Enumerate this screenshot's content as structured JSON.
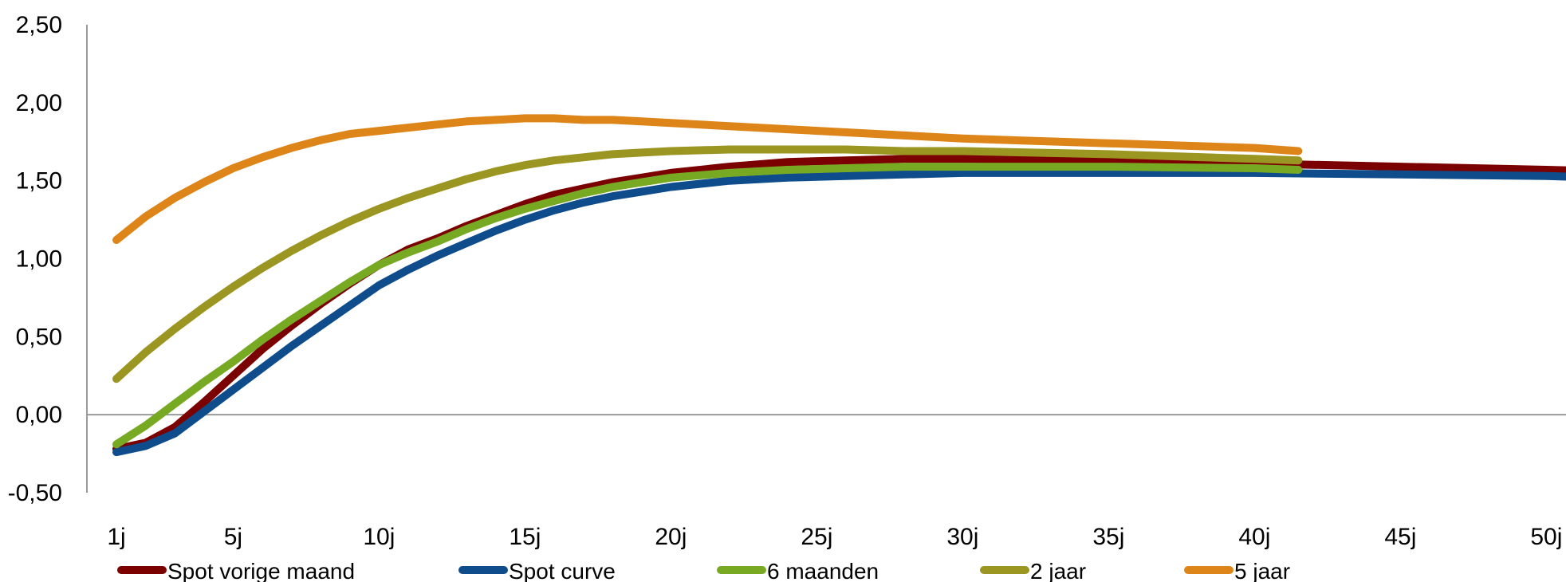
{
  "chart_data": {
    "type": "line",
    "title": "",
    "xlabel": "",
    "ylabel": "",
    "ylim": [
      -0.5,
      2.5
    ],
    "yticks": [
      "2,50",
      "2,00",
      "1,50",
      "1,00",
      "0,50",
      "0,00",
      "-0,50"
    ],
    "ytick_values": [
      2.5,
      2.0,
      1.5,
      1.0,
      0.5,
      0.0,
      -0.5
    ],
    "xlim": [
      1,
      54
    ],
    "xticks": [
      "1j",
      "5j",
      "10j",
      "15j",
      "20j",
      "25j",
      "30j",
      "35j",
      "40j",
      "45j",
      "50j"
    ],
    "xtick_values": [
      1,
      5,
      10,
      15,
      20,
      25,
      30,
      35,
      40,
      45,
      50
    ],
    "grid": false,
    "legend_position": "bottom",
    "series": [
      {
        "name": "Spot vorige maand",
        "color": "#7B0000",
        "x": [
          1,
          2,
          3,
          4,
          5,
          6,
          7,
          8,
          9,
          10,
          11,
          12,
          13,
          14,
          15,
          16,
          17,
          18,
          19,
          20,
          22,
          24,
          26,
          28,
          30,
          35,
          40,
          45,
          50,
          54
        ],
        "y": [
          -0.22,
          -0.18,
          -0.08,
          0.08,
          0.25,
          0.42,
          0.57,
          0.71,
          0.84,
          0.96,
          1.06,
          1.13,
          1.21,
          1.28,
          1.35,
          1.41,
          1.45,
          1.49,
          1.52,
          1.55,
          1.59,
          1.62,
          1.63,
          1.64,
          1.64,
          1.63,
          1.61,
          1.59,
          1.57,
          1.55
        ]
      },
      {
        "name": "Spot curve",
        "color": "#0E4C8C",
        "x": [
          1,
          2,
          3,
          4,
          5,
          6,
          7,
          8,
          9,
          10,
          11,
          12,
          13,
          14,
          15,
          16,
          17,
          18,
          19,
          20,
          22,
          24,
          26,
          28,
          30,
          35,
          40,
          45,
          50,
          54
        ],
        "y": [
          -0.24,
          -0.2,
          -0.12,
          0.02,
          0.16,
          0.3,
          0.44,
          0.57,
          0.7,
          0.83,
          0.93,
          1.02,
          1.1,
          1.18,
          1.25,
          1.31,
          1.36,
          1.4,
          1.43,
          1.46,
          1.5,
          1.52,
          1.53,
          1.54,
          1.55,
          1.55,
          1.55,
          1.54,
          1.53,
          1.51
        ]
      },
      {
        "name": "6 maanden",
        "color": "#77A923",
        "x": [
          1,
          2,
          3,
          4,
          5,
          6,
          7,
          8,
          9,
          10,
          11,
          12,
          13,
          14,
          15,
          16,
          17,
          18,
          19,
          20,
          22,
          24,
          26,
          28,
          30,
          35,
          40,
          41.5
        ],
        "y": [
          -0.19,
          -0.07,
          0.07,
          0.21,
          0.34,
          0.48,
          0.61,
          0.73,
          0.85,
          0.96,
          1.04,
          1.11,
          1.19,
          1.26,
          1.32,
          1.37,
          1.42,
          1.46,
          1.49,
          1.52,
          1.55,
          1.57,
          1.58,
          1.59,
          1.59,
          1.59,
          1.58,
          1.57
        ]
      },
      {
        "name": "2 jaar",
        "color": "#9B9521",
        "x": [
          1,
          2,
          3,
          4,
          5,
          6,
          7,
          8,
          9,
          10,
          11,
          12,
          13,
          14,
          15,
          16,
          17,
          18,
          19,
          20,
          22,
          24,
          26,
          28,
          30,
          35,
          40,
          41.5
        ],
        "y": [
          0.23,
          0.4,
          0.55,
          0.69,
          0.82,
          0.94,
          1.05,
          1.15,
          1.24,
          1.32,
          1.39,
          1.45,
          1.51,
          1.56,
          1.6,
          1.63,
          1.65,
          1.67,
          1.68,
          1.69,
          1.7,
          1.7,
          1.7,
          1.69,
          1.69,
          1.67,
          1.64,
          1.63
        ]
      },
      {
        "name": "5 jaar",
        "color": "#DD8518",
        "x": [
          1,
          2,
          3,
          4,
          5,
          6,
          7,
          8,
          9,
          10,
          11,
          12,
          13,
          14,
          15,
          16,
          17,
          18,
          19,
          20,
          22,
          24,
          26,
          28,
          30,
          35,
          40,
          41.5
        ],
        "y": [
          1.12,
          1.27,
          1.39,
          1.49,
          1.58,
          1.65,
          1.71,
          1.76,
          1.8,
          1.82,
          1.84,
          1.86,
          1.88,
          1.89,
          1.9,
          1.9,
          1.89,
          1.89,
          1.88,
          1.87,
          1.85,
          1.83,
          1.81,
          1.79,
          1.77,
          1.74,
          1.71,
          1.69
        ]
      }
    ]
  }
}
